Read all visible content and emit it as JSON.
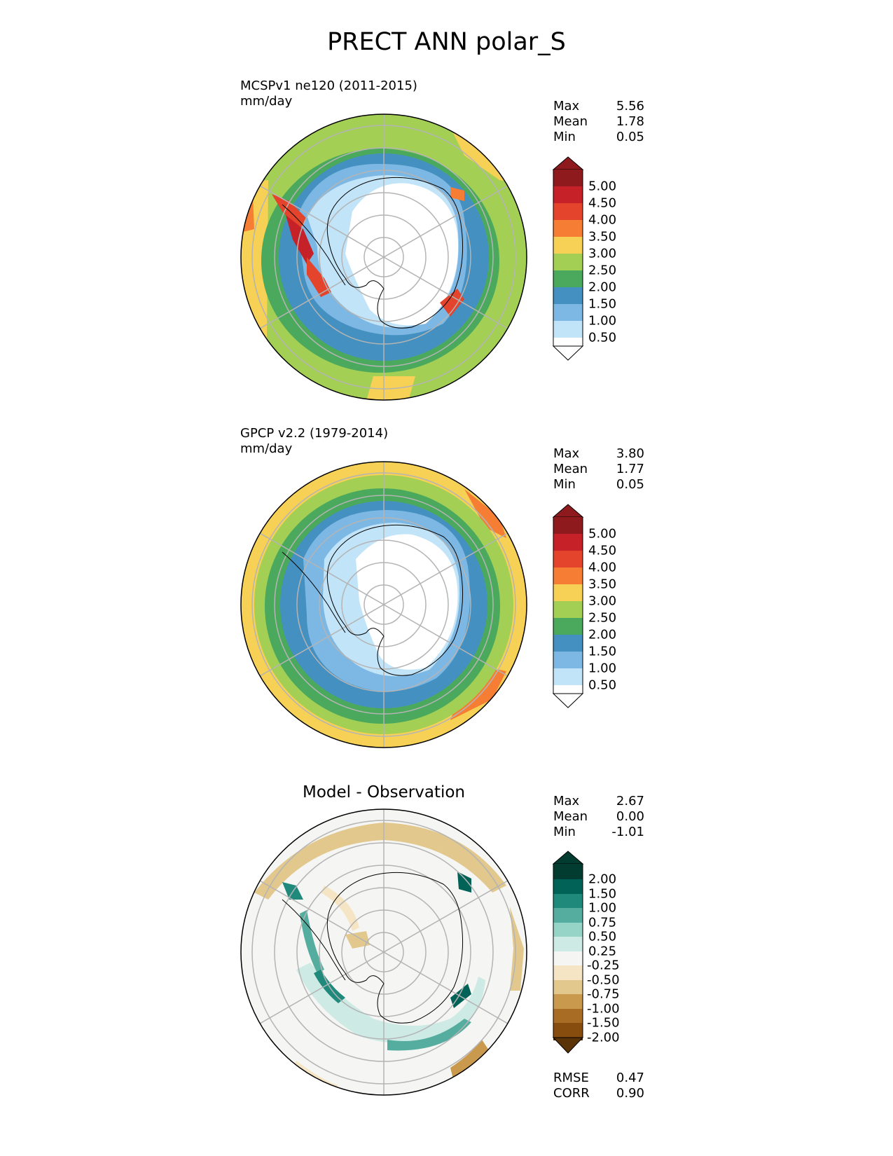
{
  "figure": {
    "title": "PRECT ANN polar_S"
  },
  "panels": [
    {
      "id": "model",
      "title_line1": "MCSPv1 ne120 (2011-2015)",
      "title_line2": "mm/day",
      "stats": [
        {
          "label": "Max",
          "value": "5.56"
        },
        {
          "label": "Mean",
          "value": "1.78"
        },
        {
          "label": "Min",
          "value": "0.05"
        }
      ],
      "colorbar": {
        "ticks": [
          "5.00",
          "4.50",
          "4.00",
          "3.50",
          "3.00",
          "2.50",
          "2.00",
          "1.50",
          "1.00",
          "0.50"
        ],
        "colors": [
          "#8e1a1e",
          "#c62128",
          "#e3442b",
          "#f57e34",
          "#f7d155",
          "#a4cf55",
          "#4aa95d",
          "#4490c1",
          "#7db8e4",
          "#c2e4f8",
          "#ffffff"
        ]
      },
      "rings": [
        "#f7d155",
        "#a4cf55",
        "#4aa95d",
        "#4490c1",
        "#7db8e4",
        "#c2e4f8"
      ]
    },
    {
      "id": "obs",
      "title_line1": "GPCP v2.2 (1979-2014)",
      "title_line2": "mm/day",
      "stats": [
        {
          "label": "Max",
          "value": "3.80"
        },
        {
          "label": "Mean",
          "value": "1.77"
        },
        {
          "label": "Min",
          "value": "0.05"
        }
      ],
      "colorbar": {
        "ticks": [
          "5.00",
          "4.50",
          "4.00",
          "3.50",
          "3.00",
          "2.50",
          "2.00",
          "1.50",
          "1.00",
          "0.50"
        ],
        "colors": [
          "#8e1a1e",
          "#c62128",
          "#e3442b",
          "#f57e34",
          "#f7d155",
          "#a4cf55",
          "#4aa95d",
          "#4490c1",
          "#7db8e4",
          "#c2e4f8",
          "#ffffff"
        ]
      },
      "rings": [
        "#f7d155",
        "#a4cf55",
        "#4aa95d",
        "#4490c1",
        "#7db8e4",
        "#c2e4f8"
      ]
    },
    {
      "id": "diff",
      "title_center": "Model - Observation",
      "stats": [
        {
          "label": "Max",
          "value": "2.67"
        },
        {
          "label": "Mean",
          "value": "0.00"
        },
        {
          "label": "Min",
          "value": "-1.01"
        }
      ],
      "colorbar": {
        "ticks": [
          "2.00",
          "1.50",
          "1.00",
          "0.75",
          "0.50",
          "0.25",
          "-0.25",
          "-0.50",
          "-0.75",
          "-1.00",
          "-1.50",
          "-2.00"
        ],
        "colors": [
          "#023c30",
          "#016358",
          "#1f8a7c",
          "#54ad9e",
          "#97d4c8",
          "#cdeae4",
          "#f5f5f3",
          "#f5e5c4",
          "#e2c88c",
          "#c99a4d",
          "#a96c24",
          "#874d0e",
          "#5a3406"
        ]
      },
      "metrics": [
        {
          "label": "RMSE",
          "value": "0.47"
        },
        {
          "label": "CORR",
          "value": "0.90"
        }
      ]
    }
  ]
}
